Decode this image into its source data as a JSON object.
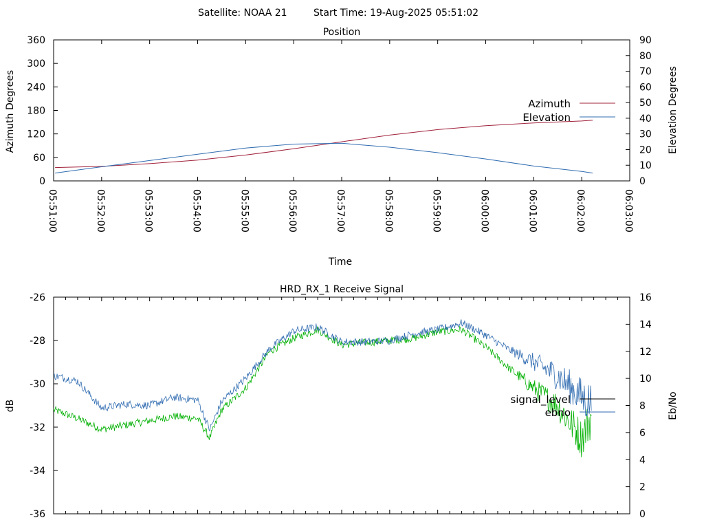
{
  "header": {
    "satellite": "Satellite: NOAA 21",
    "start_time": "Start Time: 19-Aug-2025 05:51:02"
  },
  "colors": {
    "azimuth": "#a0203a",
    "elevation": "#2f6bb0",
    "signal_level": "#000000",
    "ebno": "#2f6bb0",
    "signal_trace": "#00b000",
    "ebno_trace": "#2f6bb0"
  },
  "chart_data": [
    {
      "type": "line",
      "title": "Position",
      "xlabel": "Time",
      "ylabel": "Azimuth Degrees",
      "y2label": "Elevation Degrees",
      "xticks": [
        "05:51:00",
        "05:52:00",
        "05:53:00",
        "05:54:00",
        "05:55:00",
        "05:56:00",
        "05:57:00",
        "05:58:00",
        "05:59:00",
        "06:00:00",
        "06:01:00",
        "06:02:00",
        "06:03:00"
      ],
      "xlim_minutes": [
        0,
        12
      ],
      "ylim": [
        0,
        360
      ],
      "yticks": [
        "0",
        "60",
        "120",
        "180",
        "240",
        "300",
        "360"
      ],
      "y2lim": [
        0,
        90
      ],
      "y2ticks": [
        "0",
        "10",
        "20",
        "30",
        "40",
        "50",
        "60",
        "70",
        "80",
        "90"
      ],
      "legend_position": "right",
      "grid": false,
      "series": [
        {
          "name": "Azimuth",
          "axis": "y",
          "x_minutes": [
            0.03,
            1,
            2,
            3,
            4,
            5,
            6,
            7,
            8,
            9,
            10,
            11,
            11.23
          ],
          "values": [
            34,
            37,
            44,
            53,
            66,
            82,
            100,
            117,
            131,
            141,
            148,
            153,
            155
          ]
        },
        {
          "name": "Elevation",
          "axis": "y2",
          "x_minutes": [
            0.03,
            1,
            2,
            3,
            4,
            5,
            6,
            7,
            8,
            9,
            10,
            11,
            11.23
          ],
          "values": [
            5,
            9,
            13,
            17,
            21,
            23.5,
            24,
            21.5,
            18,
            14,
            9.5,
            6,
            5
          ]
        }
      ]
    },
    {
      "type": "line",
      "title": "HRD_RX_1 Receive Signal",
      "ylabel": "dB",
      "y2label": "Eb/No",
      "ylim": [
        -36,
        -26
      ],
      "yticks": [
        "-36",
        "-34",
        "-32",
        "-30",
        "-28",
        "-26"
      ],
      "y2lim": [
        0,
        16
      ],
      "y2ticks": [
        "0",
        "2",
        "4",
        "6",
        "8",
        "10",
        "12",
        "14",
        "16"
      ],
      "xlim_minutes": [
        0,
        12
      ],
      "legend_position": "right",
      "grid": false,
      "series": [
        {
          "name": "signal_level",
          "axis": "y",
          "x_minutes": [
            0.0,
            0.5,
            1.0,
            1.5,
            2.0,
            2.5,
            3.0,
            3.25,
            3.5,
            4.0,
            4.5,
            5.0,
            5.5,
            6.0,
            6.5,
            7.0,
            7.5,
            8.0,
            8.5,
            9.0,
            9.5,
            10.0,
            10.5,
            11.0,
            11.2
          ],
          "values": [
            -31.2,
            -31.6,
            -32.1,
            -31.9,
            -31.7,
            -31.5,
            -31.6,
            -32.5,
            -31.2,
            -30.2,
            -28.5,
            -27.9,
            -27.5,
            -28.2,
            -28.1,
            -28.0,
            -27.9,
            -27.6,
            -27.5,
            -28.3,
            -29.3,
            -30.2,
            -31.0,
            -32.5,
            -31.5
          ]
        },
        {
          "name": "ebno",
          "axis": "y2",
          "x_minutes": [
            0.0,
            0.5,
            1.0,
            1.5,
            2.0,
            2.5,
            3.0,
            3.25,
            3.5,
            4.0,
            4.5,
            5.0,
            5.5,
            6.0,
            6.5,
            7.0,
            7.5,
            8.0,
            8.5,
            9.0,
            9.5,
            10.0,
            10.5,
            11.0,
            11.2
          ],
          "values": [
            10.2,
            9.8,
            7.8,
            8.1,
            8.0,
            8.6,
            8.4,
            6.2,
            8.3,
            10.0,
            12.2,
            13.5,
            13.8,
            12.7,
            12.7,
            12.8,
            13.3,
            13.6,
            14.1,
            13.2,
            12.1,
            11.2,
            10.2,
            8.6,
            8.2
          ]
        }
      ]
    }
  ]
}
